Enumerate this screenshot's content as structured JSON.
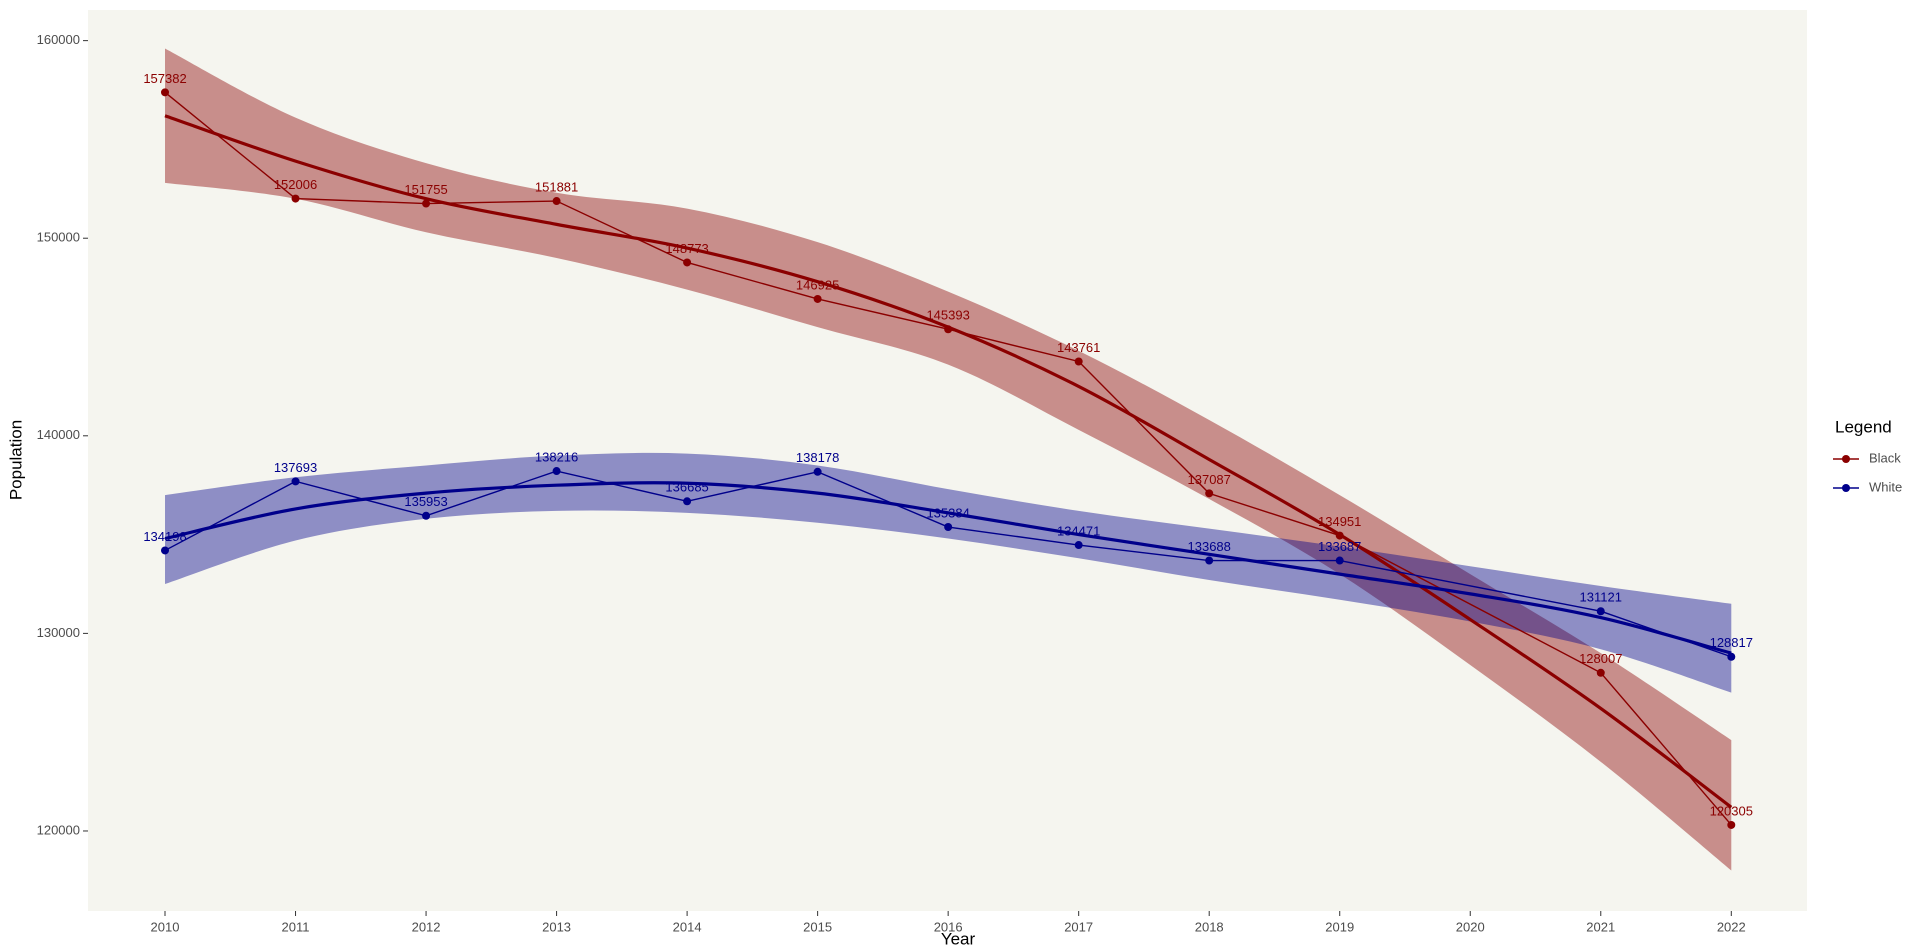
{
  "chart_data": {
    "type": "line",
    "x_label": "Year",
    "y_label": "Population",
    "legend_title": "Legend",
    "legend_position": "right",
    "grid": false,
    "x": [
      2010,
      2011,
      2012,
      2013,
      2014,
      2015,
      2016,
      2017,
      2018,
      2019,
      2021,
      2022
    ],
    "xlim": [
      2009.41,
      2022.58
    ],
    "xticks": [
      2010,
      2011,
      2012,
      2013,
      2014,
      2015,
      2016,
      2017,
      2018,
      2019,
      2020,
      2021,
      2022
    ],
    "ylim": [
      115950,
      161550
    ],
    "yticks": [
      120000,
      130000,
      140000,
      150000,
      160000
    ],
    "fit_x": [
      2010,
      2011,
      2012,
      2013,
      2014,
      2015,
      2016,
      2017,
      2018,
      2019,
      2020,
      2021,
      2022
    ],
    "series": [
      {
        "name": "Black",
        "color": "#8b0000",
        "values": [
          157382,
          152006,
          151755,
          151881,
          148773,
          146925,
          145393,
          143761,
          137087,
          134951,
          128007,
          120305
        ],
        "fit": [
          156200,
          153900,
          152000,
          150700,
          149500,
          147800,
          145500,
          142500,
          138800,
          135000,
          130700,
          126200,
          121200
        ],
        "fit_upper": [
          159600,
          156100,
          153800,
          152300,
          151500,
          149800,
          147300,
          144300,
          140800,
          137000,
          133000,
          129000,
          124600
        ],
        "fit_lower": [
          152800,
          152000,
          150300,
          149000,
          147400,
          145500,
          143600,
          140300,
          136800,
          133000,
          128400,
          123500,
          118000
        ]
      },
      {
        "name": "White",
        "color": "#00008b",
        "values": [
          134198,
          137693,
          135953,
          138216,
          136685,
          138178,
          135384,
          134471,
          133688,
          133687,
          131121,
          128817
        ],
        "fit": [
          134800,
          136300,
          137100,
          137500,
          137600,
          137100,
          136100,
          135000,
          134000,
          133000,
          132000,
          130800,
          129000
        ],
        "fit_upper": [
          137000,
          137900,
          138500,
          139000,
          139100,
          138500,
          137300,
          136200,
          135300,
          134400,
          133400,
          132400,
          131500
        ],
        "fit_lower": [
          132500,
          134700,
          135800,
          136200,
          136100,
          135600,
          134800,
          133800,
          132700,
          131700,
          130600,
          129200,
          127000
        ]
      }
    ]
  }
}
